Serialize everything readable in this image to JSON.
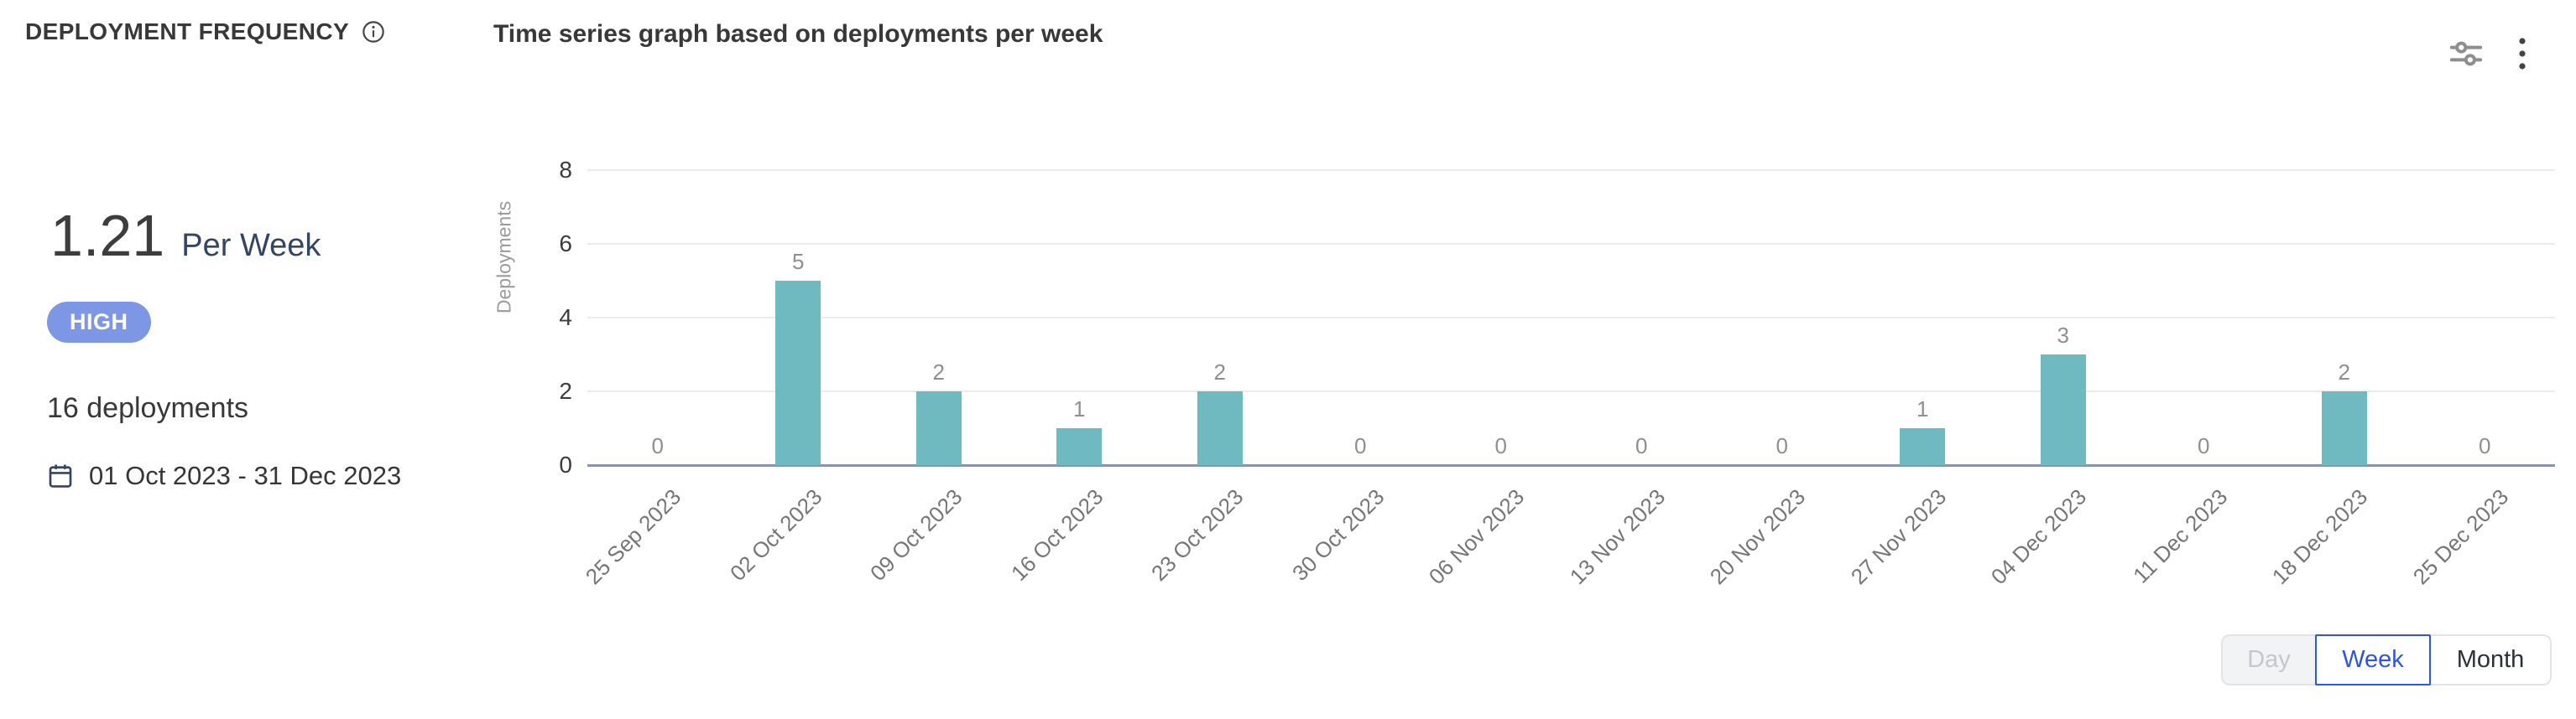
{
  "header": {
    "title": "DEPLOYMENT FREQUENCY"
  },
  "summary": {
    "value": "1.21",
    "unit": "Per Week",
    "rating": "HIGH",
    "deployments_total": "16 deployments",
    "date_range": "01 Oct 2023 - 31 Dec 2023"
  },
  "chart_header": {
    "title": "Time series graph based on deployments per week"
  },
  "granularity": {
    "options": [
      "Day",
      "Week",
      "Month"
    ],
    "selected": "Week",
    "disabled": "Day"
  },
  "colors": {
    "bar": "#6fb9c1",
    "badge_bg": "#7e97e4",
    "accent_blue": "#2e55e1",
    "navy": "#344563",
    "axis_line": "#8a94a6",
    "gridline": "#ebebeb"
  },
  "icons": {
    "info": "info-icon",
    "calendar": "calendar-icon",
    "filters": "sliders-icon",
    "menu": "kebab-menu-icon"
  },
  "chart_data": {
    "type": "bar",
    "title": "Time series graph based on deployments per week",
    "xlabel": "",
    "ylabel": "Deployments",
    "ylim": [
      0,
      8
    ],
    "yticks": [
      0,
      2,
      4,
      6,
      8
    ],
    "grid": true,
    "legend": false,
    "bar_color": "#6fb9c1",
    "value_labels": true,
    "categories": [
      "25 Sep 2023",
      "02 Oct 2023",
      "09 Oct 2023",
      "16 Oct 2023",
      "23 Oct 2023",
      "30 Oct 2023",
      "06 Nov 2023",
      "13 Nov 2023",
      "20 Nov 2023",
      "27 Nov 2023",
      "04 Dec 2023",
      "11 Dec 2023",
      "18 Dec 2023",
      "25 Dec 2023"
    ],
    "values": [
      0,
      5,
      2,
      1,
      2,
      0,
      0,
      0,
      0,
      1,
      3,
      0,
      2,
      0
    ]
  }
}
